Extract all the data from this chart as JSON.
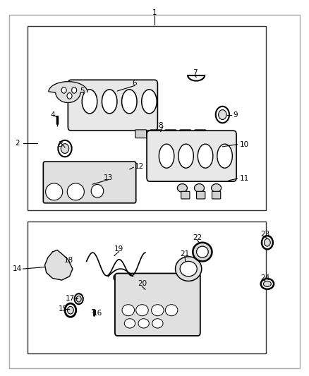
{
  "bg_color": "#ffffff",
  "outer_border_color": "#aaaaaa",
  "inner_border_color": "#333333",
  "label_color": "#000000",
  "line_color": "#000000",
  "part_color": "#000000",
  "fig_width": 4.38,
  "fig_height": 5.33,
  "dpi": 100
}
